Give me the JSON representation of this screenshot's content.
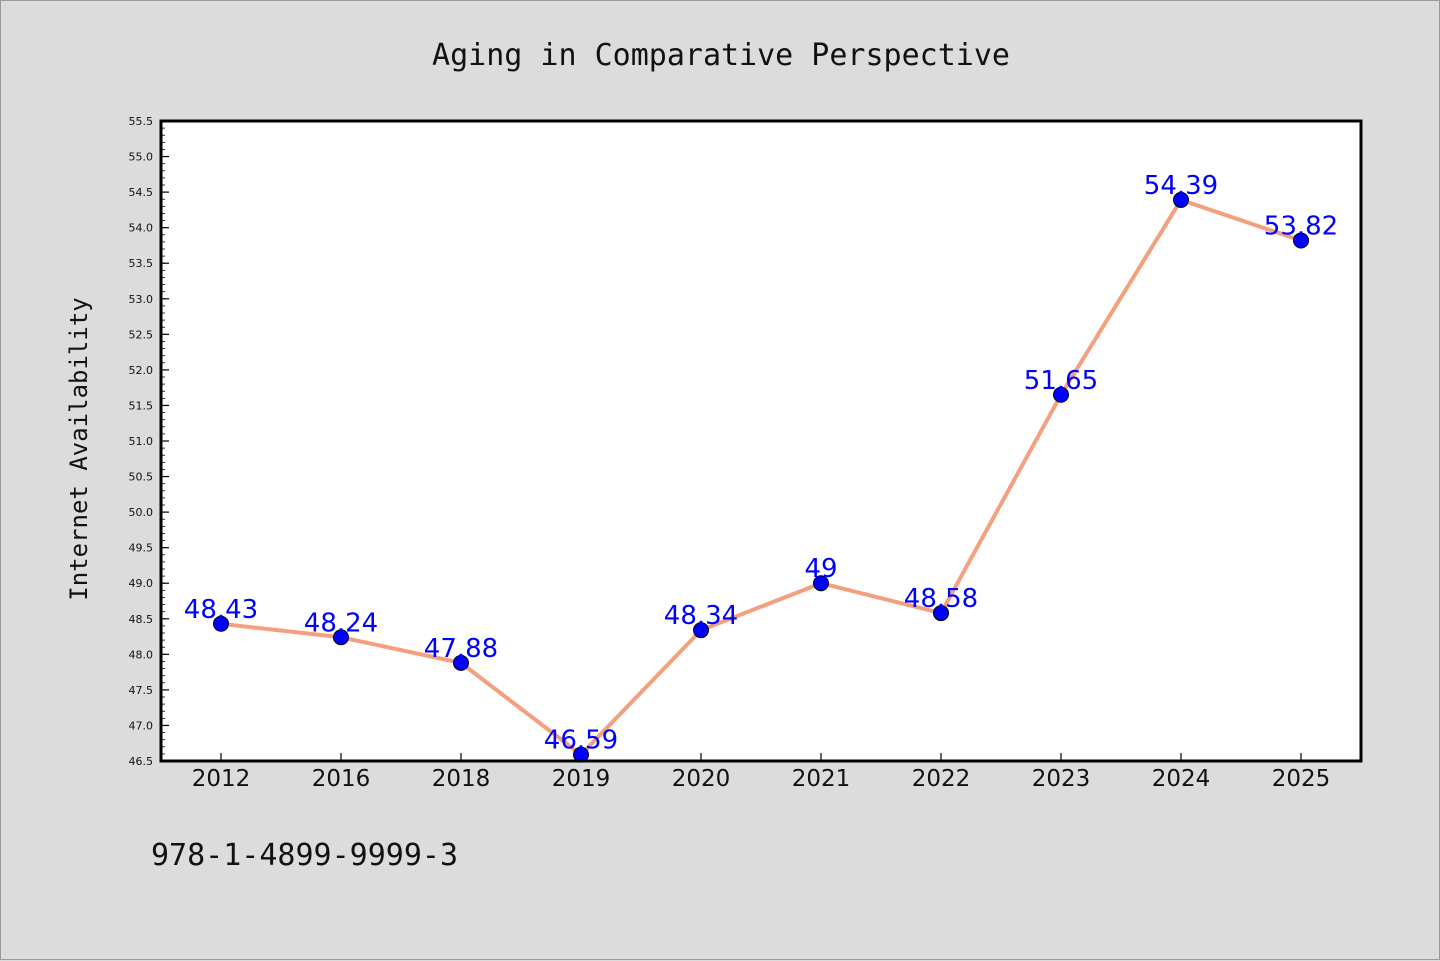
{
  "chart_data": {
    "type": "line",
    "title": "Aging in Comparative Perspective",
    "xlabel": "",
    "ylabel": "Internet Availability",
    "categories": [
      "2012",
      "2016",
      "2018",
      "2019",
      "2020",
      "2021",
      "2022",
      "2023",
      "2024",
      "2025"
    ],
    "series": [
      {
        "values": [
          48.43,
          48.24,
          47.88,
          46.59,
          48.34,
          49,
          48.58,
          51.65,
          54.39,
          53.82
        ],
        "line_color": "#f4a07e",
        "marker_color": "#0000ff"
      }
    ],
    "data_labels": [
      "48.43",
      "48.24",
      "47.88",
      "46.59",
      "48.34",
      "49",
      "48.58",
      "51.65",
      "54.39",
      "53.82"
    ],
    "ylim": [
      46.5,
      55.5
    ],
    "yticks": [
      "46.5",
      "47.0",
      "47.5",
      "48.0",
      "48.5",
      "49.0",
      "49.5",
      "50.0",
      "50.5",
      "51.0",
      "51.5",
      "52.0",
      "52.5",
      "53.0",
      "53.5",
      "54.0",
      "54.5",
      "55.0",
      "55.5"
    ],
    "grid": false,
    "legend": "none",
    "label_color": "#0000ff"
  },
  "footer": {
    "isbn": "978-1-4899-9999-3"
  }
}
